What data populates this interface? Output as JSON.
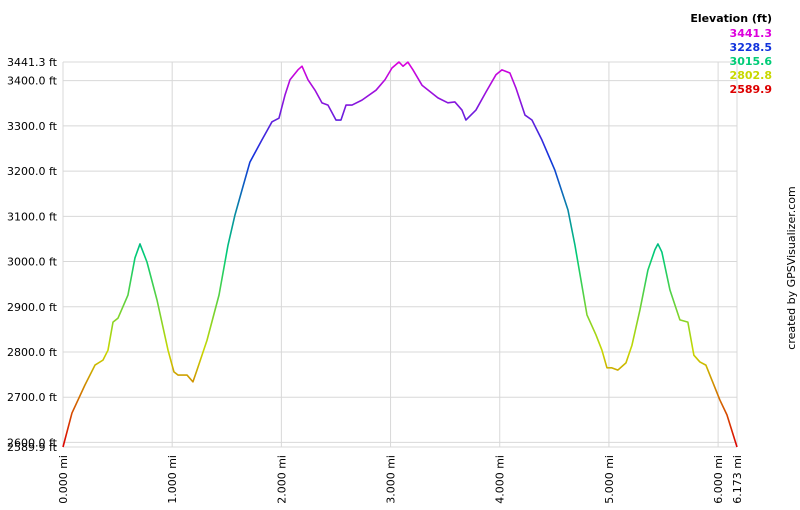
{
  "chart_data": {
    "type": "line",
    "x": [
      0,
      0.082,
      0.201,
      0.293,
      0.366,
      0.412,
      0.458,
      0.504,
      0.595,
      0.659,
      0.705,
      0.769,
      0.861,
      0.962,
      1.016,
      1.053,
      1.136,
      1.19,
      1.227,
      1.319,
      1.429,
      1.511,
      1.575,
      1.639,
      1.712,
      1.822,
      1.914,
      1.978,
      2.033,
      2.079,
      2.152,
      2.189,
      2.244,
      2.308,
      2.372,
      2.427,
      2.5,
      2.546,
      2.592,
      2.647,
      2.738,
      2.867,
      2.949,
      3.013,
      3.077,
      3.114,
      3.159,
      3.205,
      3.288,
      3.434,
      3.525,
      3.589,
      3.654,
      3.69,
      3.782,
      3.874,
      3.965,
      4.02,
      4.093,
      4.148,
      4.231,
      4.295,
      4.386,
      4.505,
      4.625,
      4.689,
      4.799,
      4.881,
      4.936,
      4.982,
      5.027,
      5.082,
      5.156,
      5.211,
      5.284,
      5.357,
      5.421,
      5.449,
      5.485,
      5.559,
      5.65,
      5.723,
      5.778,
      5.833,
      5.888,
      5.943,
      6.016,
      6.081,
      6.173
    ],
    "values": [
      2589.9,
      2665,
      2727,
      2771,
      2782,
      2804,
      2866,
      2875,
      2926,
      3008,
      3039,
      2999,
      2915,
      2804,
      2756,
      2749,
      2749,
      2734,
      2760,
      2826,
      2926,
      3036,
      3103,
      3158,
      3220,
      3269,
      3309,
      3317,
      3368,
      3402,
      3424,
      3432,
      3402,
      3379,
      3351,
      3346,
      3313,
      3313,
      3346,
      3346,
      3357,
      3379,
      3402,
      3428,
      3441.3,
      3432,
      3441,
      3424,
      3390,
      3362,
      3351,
      3353,
      3335,
      3313,
      3335,
      3375,
      3413,
      3424,
      3417,
      3384,
      3324,
      3313,
      3269,
      3202,
      3114,
      3036,
      2882,
      2838,
      2804,
      2765,
      2765,
      2760,
      2776,
      2815,
      2893,
      2981,
      3026,
      3039,
      3021,
      2937,
      2871,
      2866,
      2793,
      2778,
      2771,
      2738,
      2694,
      2661,
      2589.9
    ],
    "xlim": [
      0,
      6.173
    ],
    "ylim": [
      2589.9,
      3441.3
    ],
    "xticks": [
      {
        "value": 0,
        "label": "0.000 mi"
      },
      {
        "value": 1,
        "label": "1.000 mi"
      },
      {
        "value": 2,
        "label": "2.000 mi"
      },
      {
        "value": 3,
        "label": "3.000 mi"
      },
      {
        "value": 4,
        "label": "4.000 mi"
      },
      {
        "value": 5,
        "label": "5.000 mi"
      },
      {
        "value": 6,
        "label": "6.000 mi"
      },
      {
        "value": 6.173,
        "label": "6.173 mi"
      }
    ],
    "yticks": [
      {
        "value": 2589.9,
        "label": "2589.9 ft"
      },
      {
        "value": 2600,
        "label": "2600.0 ft"
      },
      {
        "value": 2700,
        "label": "2700.0 ft"
      },
      {
        "value": 2800,
        "label": "2800.0 ft"
      },
      {
        "value": 2900,
        "label": "2900.0 ft"
      },
      {
        "value": 3000,
        "label": "3000.0 ft"
      },
      {
        "value": 3100,
        "label": "3100.0 ft"
      },
      {
        "value": 3200,
        "label": "3200.0 ft"
      },
      {
        "value": 3300,
        "label": "3300.0 ft"
      },
      {
        "value": 3400,
        "label": "3400.0 ft"
      },
      {
        "value": 3441.3,
        "label": "3441.3 ft"
      }
    ],
    "grid": true,
    "legend_title": "Elevation (ft)",
    "color_scale": {
      "values": [
        3441.3,
        3228.5,
        3015.6,
        2802.8,
        2589.9
      ],
      "colors": [
        "#dd00dd",
        "#1133dd",
        "#00cc77",
        "#c8d800",
        "#dd0000"
      ]
    },
    "credit": "created by GPSVisualizer.com"
  }
}
